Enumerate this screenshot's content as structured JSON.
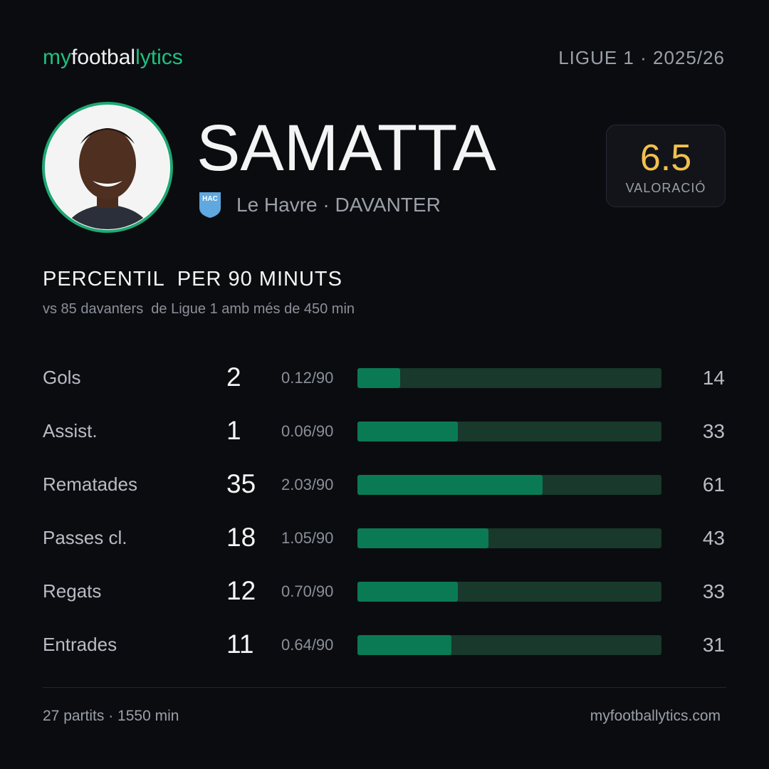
{
  "brand": {
    "part1": "my",
    "part2": "footbal",
    "part3": "lytics"
  },
  "league": "LIGUE 1 · 2025/26",
  "player": {
    "name": "SAMATTA",
    "badge": "HAC",
    "team_position": "Le Havre · DAVANTER",
    "rating": 6.5,
    "rating_label": "VALORACIÓ"
  },
  "section": {
    "title": "PERCENTIL  PER 90 MINUTS",
    "subtitle": "vs 85 davanters  de Ligue 1 amb més de 450 min"
  },
  "rows": [
    {
      "label": "Gols",
      "total": 2,
      "per90": "0.12/90",
      "percentile": 14
    },
    {
      "label": "Assist.",
      "total": 1,
      "per90": "0.06/90",
      "percentile": 33
    },
    {
      "label": "Rematades",
      "total": 35,
      "per90": "2.03/90",
      "percentile": 61
    },
    {
      "label": "Passes cl.",
      "total": 18,
      "per90": "1.05/90",
      "percentile": 43
    },
    {
      "label": "Regats",
      "total": 12,
      "per90": "0.70/90",
      "percentile": 33
    },
    {
      "label": "Entrades",
      "total": 11,
      "per90": "0.64/90",
      "percentile": 31
    }
  ],
  "footer": {
    "left": "27 partits · 1550 min",
    "right": "myfootballytics.com"
  }
}
